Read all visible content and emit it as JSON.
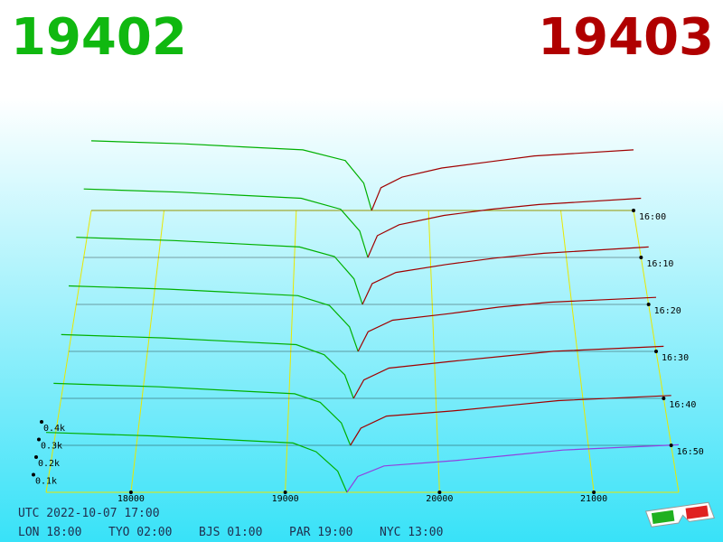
{
  "chart_data": {
    "type": "depth3d",
    "title_left": "19402",
    "title_right": "19403",
    "title_left_color": "#10b810",
    "title_right_color": "#b00000",
    "xlim": [
      17450,
      21550
    ],
    "xticks": [
      18000,
      19000,
      20000,
      21000
    ],
    "ylim": [
      0,
      2
    ],
    "yticks": [
      {
        "value": 0.1,
        "label": "0.1k"
      },
      {
        "value": 0.2,
        "label": "0.2k"
      },
      {
        "value": 0.3,
        "label": "0.3k"
      },
      {
        "value": 0.4,
        "label": "0.4k"
      }
    ],
    "zlim": [
      0,
      60
    ],
    "zticks": [
      {
        "value": 0,
        "label": "16:00"
      },
      {
        "value": 10,
        "label": "16:10"
      },
      {
        "value": 20,
        "label": "16:20"
      },
      {
        "value": 30,
        "label": "16:30"
      },
      {
        "value": 40,
        "label": "16:40"
      },
      {
        "value": 50,
        "label": "16:50"
      }
    ],
    "series": [
      {
        "color": "#00b000",
        "z": 0,
        "x": [
          17450,
          18150,
          18600,
          19050,
          19370,
          19510,
          19570
        ],
        "values": [
          0.46,
          0.44,
          0.42,
          0.4,
          0.33,
          0.18,
          0
        ]
      },
      {
        "color": "#a00000",
        "z": 0,
        "x": [
          19570,
          19640,
          19800,
          20100,
          20450,
          20800,
          21550
        ],
        "values": [
          0,
          0.15,
          0.22,
          0.28,
          0.32,
          0.36,
          0.4
        ]
      },
      {
        "color": "#00b000",
        "z": 10,
        "x": [
          17450,
          18150,
          18600,
          19050,
          19340,
          19480,
          19540
        ],
        "values": [
          0.44,
          0.42,
          0.4,
          0.38,
          0.31,
          0.17,
          0
        ]
      },
      {
        "color": "#a00000",
        "z": 10,
        "x": [
          19540,
          19610,
          19770,
          20100,
          20450,
          20800,
          21550
        ],
        "values": [
          0,
          0.14,
          0.21,
          0.27,
          0.31,
          0.34,
          0.38
        ]
      },
      {
        "color": "#00b000",
        "z": 20,
        "x": [
          17450,
          18150,
          18600,
          19050,
          19300,
          19440,
          19500
        ],
        "values": [
          0.42,
          0.4,
          0.38,
          0.36,
          0.3,
          0.16,
          0
        ]
      },
      {
        "color": "#a00000",
        "z": 20,
        "x": [
          19500,
          19570,
          19740,
          20100,
          20450,
          20800,
          21550
        ],
        "values": [
          0,
          0.13,
          0.2,
          0.25,
          0.29,
          0.32,
          0.36
        ]
      },
      {
        "color": "#00b000",
        "z": 30,
        "x": [
          17450,
          18150,
          18600,
          19050,
          19270,
          19410,
          19470
        ],
        "values": [
          0.4,
          0.38,
          0.36,
          0.34,
          0.28,
          0.15,
          0
        ]
      },
      {
        "color": "#a00000",
        "z": 30,
        "x": [
          19470,
          19540,
          19710,
          20100,
          20450,
          20800,
          21550
        ],
        "values": [
          0,
          0.12,
          0.19,
          0.23,
          0.27,
          0.3,
          0.33
        ]
      },
      {
        "color": "#00b000",
        "z": 40,
        "x": [
          17450,
          18150,
          18600,
          19050,
          19240,
          19380,
          19440
        ],
        "values": [
          0.38,
          0.36,
          0.34,
          0.32,
          0.26,
          0.14,
          0
        ]
      },
      {
        "color": "#a00000",
        "z": 40,
        "x": [
          19440,
          19510,
          19680,
          20100,
          20450,
          20800,
          21550
        ],
        "values": [
          0,
          0.11,
          0.18,
          0.22,
          0.25,
          0.28,
          0.31
        ]
      },
      {
        "color": "#00b000",
        "z": 50,
        "x": [
          17450,
          18150,
          18600,
          19050,
          19220,
          19360,
          19420
        ],
        "values": [
          0.36,
          0.34,
          0.32,
          0.3,
          0.25,
          0.13,
          0
        ]
      },
      {
        "color": "#a00000",
        "z": 50,
        "x": [
          19420,
          19490,
          19660,
          20100,
          20450,
          20800,
          21550
        ],
        "values": [
          0,
          0.1,
          0.17,
          0.2,
          0.23,
          0.26,
          0.29
        ]
      },
      {
        "color": "#00b000",
        "z": 60,
        "x": [
          17450,
          18150,
          18600,
          19050,
          19200,
          19340,
          19400
        ],
        "values": [
          0.34,
          0.32,
          0.3,
          0.28,
          0.23,
          0.12,
          0
        ]
      },
      {
        "color": "#9040e0",
        "z": 60,
        "x": [
          19400,
          19470,
          19640,
          20100,
          20450,
          20800,
          21550
        ],
        "values": [
          0,
          0.09,
          0.15,
          0.18,
          0.21,
          0.24,
          0.27
        ]
      }
    ],
    "floor_color": "#e8e800",
    "footer": {
      "utc": "UTC 2022-10-07 17:00",
      "clocks": [
        "LON 18:00",
        "TYO 02:00",
        "BJS 01:00",
        "PAR 19:00",
        "NYC 13:00"
      ]
    }
  }
}
